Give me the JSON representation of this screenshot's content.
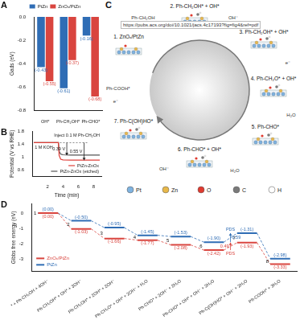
{
  "overlay_text": "https://pubs.acs.org/doi/10.1021/jacs.4c17193?fig=fig4&ref=pdf",
  "chart_data": [
    {
      "panel": "A",
      "type": "bar",
      "y_label": "Gads (eV)",
      "categories": [
        "OH*",
        "Ph-CH₂OH*",
        "Ph-CHO*"
      ],
      "series": [
        {
          "name": "PtZn",
          "color": "#2f6db5",
          "values": [
            -0.43,
            -0.61,
            -0.16
          ],
          "value_labels": [
            "(-0.43)",
            "(-0.61)",
            "(-0.16)"
          ]
        },
        {
          "name": "ZnOₓ/PtZn",
          "color": "#d9453f",
          "values": [
            -0.55,
            -0.37,
            -0.68
          ],
          "value_labels": [
            "(-0.55)",
            "(-0.37)",
            "(-0.68)"
          ]
        }
      ],
      "ylim": [
        -0.8,
        0
      ],
      "yticks": [
        -0.8,
        -0.6,
        -0.4,
        -0.2,
        {
          "value": 0,
          "label": "0.0"
        }
      ],
      "grid": false,
      "legend": "top",
      "data_labels": true
    },
    {
      "panel": "B",
      "type": "line",
      "x_label": "Time (min)",
      "y_label": "Potential (V vs RHE)",
      "x": [
        0.2,
        1,
        2,
        3,
        3.4,
        3.5,
        3.7,
        4,
        5,
        6,
        7,
        8,
        8.8
      ],
      "series": [
        {
          "name": "PtZn-ZnOx",
          "color": "#e0403a",
          "values": [
            1.45,
            1.45,
            1.45,
            1.45,
            1.45,
            1.05,
            0.93,
            0.91,
            0.9,
            0.9,
            0.9,
            0.9,
            0.9
          ]
        },
        {
          "name": "PtZn-ZnOx (etched)",
          "color": "#555555",
          "values": [
            1.45,
            1.45,
            1.45,
            1.45,
            1.45,
            1.18,
            1.09,
            1.07,
            1.06,
            1.06,
            1.06,
            1.06,
            1.06
          ]
        }
      ],
      "xlim": [
        0,
        9
      ],
      "xticks": [
        2,
        4,
        6,
        8
      ],
      "ylim": [
        0.4,
        1.8
      ],
      "yticks": [
        0.6,
        1.0,
        1.4,
        1.8
      ],
      "grid": false,
      "legend": "lower right",
      "annotations": [
        {
          "text": "1 M KOH"
        },
        {
          "text": "Inject 0.1 M Ph-CH₂OH"
        },
        {
          "text": "0.39 V",
          "series": "PtZn-ZnOx (etched)"
        },
        {
          "text": "0.55 V",
          "series": "PtZn-ZnOx"
        }
      ]
    },
    {
      "panel": "D",
      "type": "line",
      "y_label": "Gibbs free energy (eV)",
      "categories": [
        "* + Ph-CH₂OH + 4OH⁻",
        "Ph-CH₂OH* + OH* + 3OH⁻",
        "Ph-CH₂OH* + 2OH* + 2OH⁻",
        "Ph-CH₂O* + OH* + 2OH⁻ + H₂O",
        "Ph-CHO* + 2OH⁻ + 2H₂O",
        "Ph-CHO* + OH* + OH⁻ + 2H₂O",
        "Ph-C(OH)HO* + OH⁻ + 2H₂O",
        "Ph-COOH* + 3H₂O"
      ],
      "state_numbers": [
        1,
        2,
        3,
        4,
        5,
        6,
        7,
        8
      ],
      "series": [
        {
          "name": "ZnOₓ/PtZn",
          "color": "#d9453f",
          "values": [
            0,
            -1.03,
            -1.66,
            -1.77,
            -2.08,
            -2.42,
            -1.93,
            -3.33
          ],
          "value_labels": [
            "(0.00)",
            "(-1.03)",
            "(-1.66)",
            "(-1.77)",
            "(-2.08)",
            "(-2.42)",
            "(-1.93)",
            "(-3.33)"
          ]
        },
        {
          "name": "PtZn",
          "color": "#2f6db5",
          "values": [
            0,
            -0.5,
            -0.95,
            -1.45,
            -1.53,
            -1.9,
            -1.31,
            -2.98
          ],
          "value_labels": [
            "(0.00)",
            "(-0.50)",
            "(-0.95)",
            "(-1.45)",
            "(-1.53)",
            "(-1.90)",
            "(-1.31)",
            "(-2.98)"
          ]
        }
      ],
      "ylim": [
        -3.8,
        0.6
      ],
      "yticks": [
        -3,
        -2,
        -1,
        0
      ],
      "grid": false,
      "legend": "lower left",
      "data_labels": true,
      "line_style": "dashed",
      "annotations": [
        {
          "label": "PDS",
          "value": 0.59,
          "series": "PtZn",
          "steps": [
            6,
            7
          ]
        },
        {
          "label": "PDS",
          "value": 0.49,
          "series": "ZnOₓ/PtZn",
          "steps": [
            6,
            7
          ]
        }
      ]
    }
  ],
  "diagram": {
    "panel": "C",
    "steps": [
      "1. ZnOₓ/PtZn",
      "2. Ph-CH₂OH* + OH*",
      "3. Ph-CH₂OH* + OH*",
      "4. Ph-CH₂O* + OH*",
      "5. Ph-CHO*",
      "6. Ph-CHO* + OH*",
      "7. Ph-C(OH)HO*"
    ],
    "side_texts": [
      "Ph-CH₂OH",
      "OH⁻",
      "e⁻",
      "H₂O",
      "H₂O",
      "OH⁻",
      "Ph-COOH*",
      "e⁻"
    ],
    "atoms": [
      {
        "label": "Pt",
        "color": "#7fb3e0"
      },
      {
        "label": "Zn",
        "color": "#e8b84a"
      },
      {
        "label": "O",
        "color": "#e03a2f"
      },
      {
        "label": "C",
        "color": "#7a7a7a"
      },
      {
        "label": "H",
        "color": "#ffffff"
      }
    ]
  }
}
